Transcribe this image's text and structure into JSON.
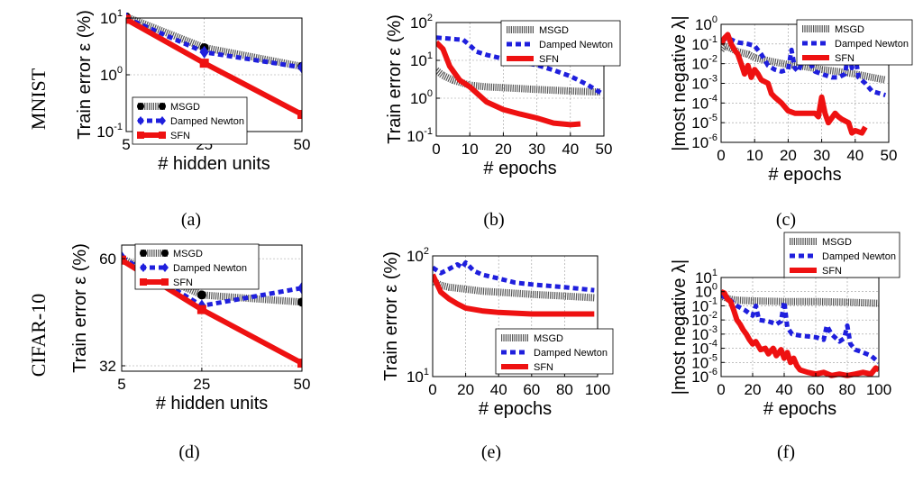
{
  "rows": [
    {
      "label": "MNIST"
    },
    {
      "label": "CIFAR-10"
    }
  ],
  "legend_labels": [
    "MSGD",
    "Damped Newton",
    "SFN"
  ],
  "colors": {
    "msgd": "#555555",
    "newton": "#1f1fdd",
    "sfn": "#ee1111"
  },
  "chart_data": [
    {
      "id": "a",
      "type": "line",
      "caption": "(a)",
      "xlabel": "# hidden units",
      "ylabel": "Train error ε (%)",
      "xscale": "linear",
      "yscale": "log",
      "xlim": [
        5,
        50
      ],
      "ylim": [
        0.1,
        10
      ],
      "xticks": [
        5,
        25,
        50
      ],
      "xticklabels": [
        "5",
        "25",
        "50"
      ],
      "ytick_base": [
        "10",
        "10",
        "10"
      ],
      "ytick_exp": [
        "1",
        "0",
        "-1"
      ],
      "ytick_values": [
        10,
        1,
        0.1
      ],
      "legend_position": "bottom-left",
      "series": [
        {
          "name": "MSGD",
          "x": [
            5,
            25,
            50
          ],
          "y": [
            10.5,
            3.0,
            1.4
          ],
          "marker": "circle"
        },
        {
          "name": "Damped Newton",
          "x": [
            5,
            25,
            50
          ],
          "y": [
            10.0,
            2.5,
            1.35
          ],
          "marker": "diamond"
        },
        {
          "name": "SFN",
          "x": [
            5,
            25,
            50
          ],
          "y": [
            9.5,
            1.6,
            0.2
          ],
          "marker": "square"
        }
      ]
    },
    {
      "id": "b",
      "type": "line",
      "caption": "(b)",
      "xlabel": "# epochs",
      "ylabel": "Train error ε (%)",
      "xscale": "linear",
      "yscale": "log",
      "xlim": [
        0,
        50
      ],
      "ylim": [
        0.1,
        100
      ],
      "xticks": [
        0,
        10,
        20,
        30,
        40,
        50
      ],
      "xticklabels": [
        "0",
        "10",
        "20",
        "30",
        "40",
        "50"
      ],
      "ytick_base": [
        "10",
        "10",
        "10",
        "10"
      ],
      "ytick_exp": [
        "2",
        "1",
        "0",
        "-1"
      ],
      "ytick_values": [
        100,
        10,
        1,
        0.1
      ],
      "legend_position": "top-right",
      "series": [
        {
          "name": "MSGD",
          "x": [
            0,
            2,
            5,
            8,
            10,
            15,
            20,
            30,
            40,
            49
          ],
          "y": [
            5.5,
            4.0,
            3.0,
            2.5,
            2.2,
            2.0,
            1.9,
            1.7,
            1.55,
            1.45
          ]
        },
        {
          "name": "Damped Newton",
          "x": [
            0,
            3,
            6,
            8,
            10,
            12,
            15,
            20,
            25,
            30,
            35,
            40,
            45,
            49
          ],
          "y": [
            40,
            38,
            36,
            35,
            25,
            17,
            14,
            11,
            9,
            7.5,
            5.5,
            3.8,
            2.3,
            1.4
          ]
        },
        {
          "name": "SFN",
          "x": [
            0,
            2,
            4,
            7,
            10,
            15,
            20,
            25,
            30,
            35,
            40,
            43
          ],
          "y": [
            30,
            20,
            7,
            3,
            2.0,
            0.8,
            0.5,
            0.38,
            0.3,
            0.22,
            0.2,
            0.21
          ]
        }
      ]
    },
    {
      "id": "c",
      "type": "line",
      "caption": "(c)",
      "xlabel": "# epochs",
      "ylabel": "|most negative λ|",
      "xscale": "linear",
      "yscale": "log",
      "xlim": [
        0,
        50
      ],
      "ylim": [
        1e-06,
        1
      ],
      "xticks": [
        0,
        10,
        20,
        30,
        40,
        50
      ],
      "xticklabels": [
        "0",
        "10",
        "20",
        "30",
        "40",
        "50"
      ],
      "ytick_base": [
        "10",
        "10",
        "10",
        "10",
        "10",
        "10",
        "10"
      ],
      "ytick_exp": [
        "0",
        "-1",
        "-2",
        "-3",
        "-4",
        "-5",
        "-6"
      ],
      "ytick_values": [
        1,
        0.1,
        0.01,
        0.001,
        0.0001,
        1e-05,
        1e-06
      ],
      "legend_position": "top-right",
      "series": [
        {
          "name": "MSGD",
          "x": [
            0,
            1,
            3,
            5,
            8,
            10,
            15,
            20,
            25,
            30,
            35,
            40,
            45,
            49
          ],
          "y": [
            0.05,
            0.08,
            0.06,
            0.04,
            0.03,
            0.02,
            0.013,
            0.009,
            0.007,
            0.005,
            0.004,
            0.003,
            0.002,
            0.0015
          ]
        },
        {
          "name": "Damped Newton",
          "x": [
            0,
            2,
            5,
            8,
            10,
            12,
            14,
            16,
            18,
            20,
            21,
            22,
            23,
            25,
            28,
            30,
            33,
            35,
            37,
            38,
            39,
            40,
            41,
            43,
            45,
            49
          ],
          "y": [
            0.15,
            0.2,
            0.12,
            0.1,
            0.08,
            0.03,
            0.008,
            0.005,
            0.004,
            0.005,
            0.05,
            0.006,
            0.004,
            0.03,
            0.004,
            0.003,
            0.002,
            0.002,
            0.003,
            0.05,
            0.006,
            0.03,
            0.002,
            0.001,
            0.0004,
            0.00025
          ]
        },
        {
          "name": "SFN",
          "x": [
            0,
            1,
            2,
            3,
            4,
            5,
            6,
            7,
            8,
            9,
            10,
            11,
            12,
            14,
            15,
            16,
            18,
            20,
            22,
            25,
            28,
            29,
            30,
            31,
            32,
            34,
            35,
            36,
            38,
            39,
            40,
            42,
            43
          ],
          "y": [
            0.1,
            0.2,
            0.3,
            0.1,
            0.05,
            0.03,
            0.01,
            0.003,
            0.008,
            0.002,
            0.005,
            0.003,
            0.0015,
            0.001,
            0.0003,
            0.0002,
            0.0001,
            4e-05,
            3e-05,
            3e-05,
            3e-05,
            2e-05,
            0.0002,
            3e-05,
            1e-05,
            3e-05,
            2e-05,
            1.5e-05,
            1e-05,
            3e-06,
            4e-06,
            3e-06,
            6e-06
          ]
        }
      ]
    },
    {
      "id": "d",
      "type": "line",
      "caption": "(d)",
      "xlabel": "# hidden units",
      "ylabel": "Train error ε (%)",
      "xscale": "linear",
      "yscale": "log",
      "xlim": [
        5,
        50
      ],
      "ylim": [
        31,
        65
      ],
      "xticks": [
        5,
        25,
        50
      ],
      "xticklabels": [
        "5",
        "25",
        "50"
      ],
      "yticks": [
        60,
        32
      ],
      "yticklabels": [
        "60",
        "32"
      ],
      "legend_position": "top-left",
      "series": [
        {
          "name": "MSGD",
          "x": [
            5,
            25,
            50
          ],
          "y": [
            60,
            48.5,
            46.5
          ],
          "marker": "circle"
        },
        {
          "name": "Damped Newton",
          "x": [
            5,
            25,
            50
          ],
          "y": [
            60.5,
            45.5,
            50.5
          ],
          "marker": "diamond"
        },
        {
          "name": "SFN",
          "x": [
            5,
            25,
            50
          ],
          "y": [
            59.5,
            44.5,
            32.5
          ],
          "marker": "square"
        }
      ]
    },
    {
      "id": "e",
      "type": "line",
      "caption": "(e)",
      "xlabel": "# epochs",
      "ylabel": "Train error ε (%)",
      "xscale": "linear",
      "yscale": "log",
      "xlim": [
        0,
        100
      ],
      "ylim": [
        10,
        100
      ],
      "xticks": [
        0,
        20,
        40,
        60,
        80,
        100
      ],
      "xticklabels": [
        "0",
        "20",
        "40",
        "60",
        "80",
        "100"
      ],
      "ytick_base": [
        "10",
        "10"
      ],
      "ytick_exp": [
        "2",
        "1"
      ],
      "ytick_values": [
        100,
        10
      ],
      "legend_position": "bottom-right",
      "series": [
        {
          "name": "MSGD",
          "x": [
            0,
            5,
            10,
            20,
            30,
            40,
            60,
            80,
            98
          ],
          "y": [
            62,
            57,
            55,
            53,
            51,
            50,
            48,
            46.5,
            45
          ]
        },
        {
          "name": "Damped Newton",
          "x": [
            0,
            5,
            10,
            15,
            18,
            20,
            25,
            30,
            40,
            50,
            60,
            80,
            98
          ],
          "y": [
            80,
            72,
            78,
            85,
            80,
            88,
            75,
            70,
            65,
            60,
            58,
            55,
            52
          ]
        },
        {
          "name": "SFN",
          "x": [
            0,
            5,
            10,
            15,
            20,
            30,
            40,
            50,
            60,
            80,
            98
          ],
          "y": [
            70,
            50,
            44,
            40,
            37,
            35,
            34,
            33.5,
            33,
            33,
            33
          ]
        }
      ]
    },
    {
      "id": "f",
      "type": "line",
      "caption": "(f)",
      "xlabel": "# epochs",
      "ylabel": "|most negative λ|",
      "xscale": "linear",
      "yscale": "log",
      "xlim": [
        0,
        100
      ],
      "ylim": [
        1e-06,
        10
      ],
      "xticks": [
        0,
        20,
        40,
        60,
        80,
        100
      ],
      "xticklabels": [
        "0",
        "20",
        "40",
        "60",
        "80",
        "100"
      ],
      "ytick_base": [
        "10",
        "10",
        "10",
        "10",
        "10",
        "10",
        "10",
        "10"
      ],
      "ytick_exp": [
        "1",
        "0",
        "-1",
        "-2",
        "-3",
        "-4",
        "-5",
        "-6"
      ],
      "ytick_values": [
        10,
        1,
        0.1,
        0.01,
        0.001,
        0.0001,
        1e-05,
        1e-06
      ],
      "legend_position": "top-right",
      "series": [
        {
          "name": "MSGD",
          "x": [
            0,
            5,
            10,
            20,
            40,
            60,
            80,
            100
          ],
          "y": [
            0.5,
            0.3,
            0.25,
            0.22,
            0.2,
            0.2,
            0.18,
            0.15
          ]
        },
        {
          "name": "Damped Newton",
          "x": [
            0,
            3,
            5,
            8,
            10,
            15,
            20,
            22,
            24,
            30,
            35,
            38,
            40,
            42,
            45,
            50,
            60,
            65,
            67,
            70,
            75,
            78,
            80,
            82,
            85,
            90,
            95,
            100
          ],
          "y": [
            0.5,
            0.4,
            0.3,
            0.15,
            0.1,
            0.05,
            0.02,
            0.1,
            0.01,
            0.008,
            0.005,
            0.008,
            0.2,
            0.003,
            0.001,
            0.0008,
            0.0006,
            0.0004,
            0.004,
            0.001,
            0.0003,
            0.0005,
            0.004,
            0.0002,
            8e-05,
            5e-05,
            3e-05,
            1e-05
          ]
        },
        {
          "name": "SFN",
          "x": [
            0,
            2,
            4,
            6,
            8,
            10,
            12,
            14,
            16,
            18,
            20,
            22,
            25,
            28,
            30,
            33,
            35,
            38,
            40,
            42,
            44,
            46,
            48,
            50,
            55,
            60,
            65,
            70,
            75,
            80,
            85,
            90,
            95,
            98,
            100
          ],
          "y": [
            1,
            0.8,
            0.3,
            0.2,
            0.05,
            0.01,
            0.005,
            0.002,
            0.001,
            0.0004,
            0.0002,
            0.0003,
            8e-05,
            0.0001,
            4e-05,
            0.0001,
            3e-05,
            8e-05,
            2e-05,
            5e-05,
            1e-05,
            2e-05,
            6e-06,
            3e-06,
            2e-06,
            1.5e-06,
            2e-06,
            1.2e-06,
            1.5e-06,
            1.2e-06,
            1.5e-06,
            2e-06,
            1.5e-06,
            4e-06,
            3e-06
          ]
        }
      ]
    }
  ]
}
